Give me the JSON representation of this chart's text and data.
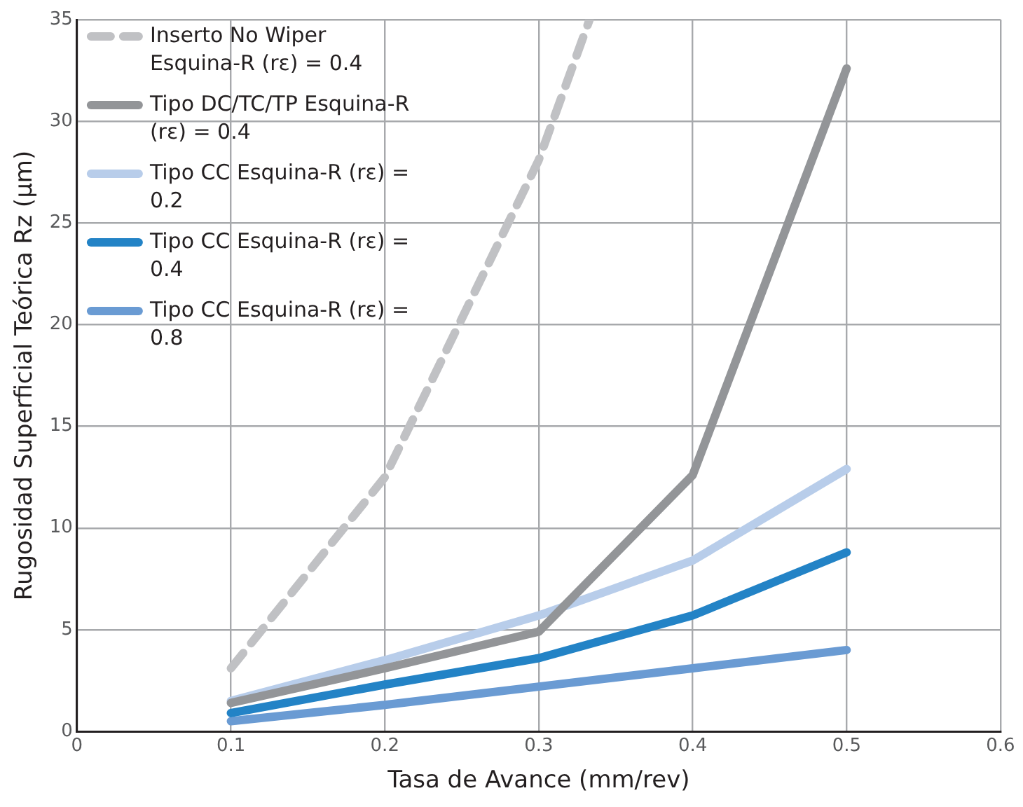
{
  "chart_data": {
    "type": "line",
    "xlabel": "Tasa de Avance (mm/rev)",
    "ylabel": "Rugosidad Superficial Teórica Rz (μm)",
    "x": [
      0.1,
      0.2,
      0.3,
      0.4,
      0.5
    ],
    "xlim": [
      0,
      0.6
    ],
    "xticks": [
      0,
      0.1,
      0.2,
      0.3,
      0.4,
      0.5,
      0.6
    ],
    "ylim": [
      0,
      35
    ],
    "yticks": [
      0,
      5,
      10,
      15,
      20,
      25,
      30,
      35
    ],
    "grid": true,
    "legend": "top left",
    "marker": "none",
    "series": [
      {
        "name": "Inserto No Wiper Esquina-R (rε) = 0.4",
        "color": "#c0c1c4",
        "line_style": "dashed",
        "x": [
          0.1,
          0.2,
          0.3,
          0.333
        ],
        "values": [
          3.1,
          12.5,
          28.1,
          35
        ]
      },
      {
        "name": "Tipo DC/TC/TP Esquina-R (rε) = 0.4",
        "color": "#939598",
        "values": [
          1.4,
          3.1,
          4.9,
          12.6,
          32.6
        ]
      },
      {
        "name": "Tipo CC Esquina-R (rε) = 0.2",
        "color": "#b8cdea",
        "values": [
          1.5,
          3.5,
          5.7,
          8.4,
          12.9
        ]
      },
      {
        "name": "Tipo CC Esquina-R (rε) = 0.4",
        "color": "#2383c6",
        "values": [
          0.9,
          2.3,
          3.6,
          5.7,
          8.8
        ]
      },
      {
        "name": "Tipo CC Esquina-R (rε) = 0.8",
        "color": "#6a9bd3",
        "values": [
          0.5,
          1.3,
          2.2,
          3.1,
          4.0
        ]
      }
    ]
  }
}
